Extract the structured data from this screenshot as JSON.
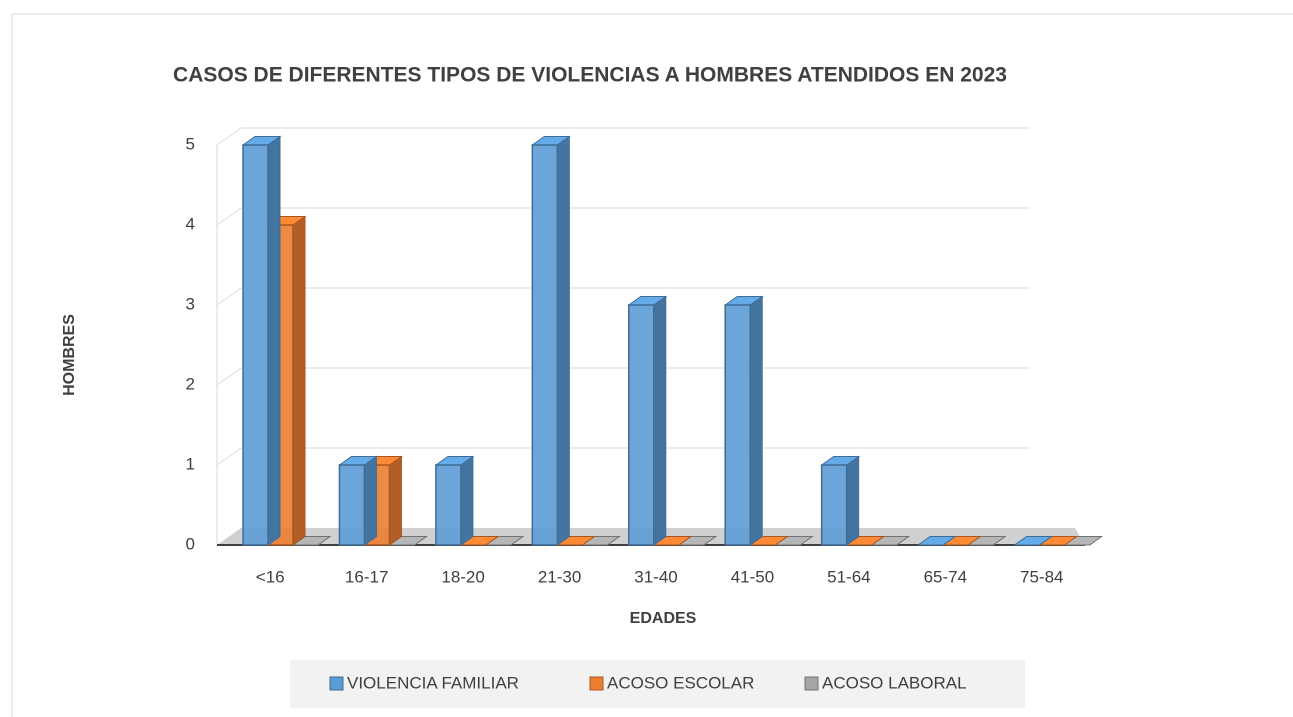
{
  "chart_data": {
    "type": "bar3d",
    "title": "CASOS DE DIFERENTES TIPOS DE VIOLENCIAS A HOMBRES ATENDIDOS EN 2023",
    "x_label": "EDADES",
    "y_label": "HOMBRES",
    "categories": [
      "<16",
      "16-17",
      "18-20",
      "21-30",
      "31-40",
      "41-50",
      "51-64",
      "65-74",
      "75-84"
    ],
    "series": [
      {
        "name": "VIOLENCIA FAMILIAR",
        "color": "#5b9bd5",
        "values": [
          5,
          1,
          1,
          5,
          3,
          3,
          1,
          0,
          0
        ]
      },
      {
        "name": "ACOSO ESCOLAR",
        "color": "#ed7d31",
        "values": [
          4,
          1,
          0,
          0,
          0,
          0,
          0,
          0,
          0
        ]
      },
      {
        "name": "ACOSO LABORAL",
        "color": "#a5a5a5",
        "values": [
          0,
          0,
          0,
          0,
          0,
          0,
          0,
          0,
          0
        ]
      }
    ],
    "ylim": [
      0,
      5
    ],
    "yticks": [
      0,
      1,
      2,
      3,
      4,
      5
    ],
    "grid": true,
    "legend": "bottom"
  }
}
